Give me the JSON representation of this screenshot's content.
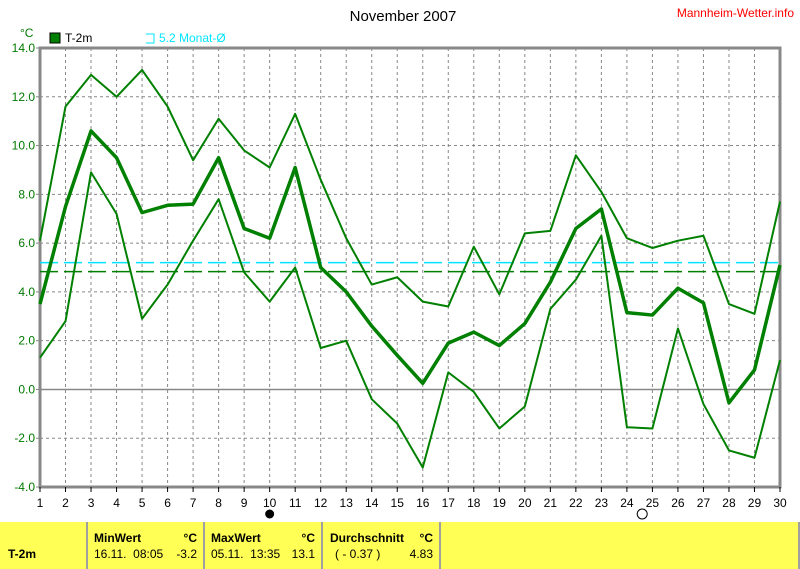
{
  "brand": "Mannheim-Wetter.info",
  "colors": {
    "series": "#008000",
    "average_line": "#008000",
    "monthly_avg_line": "#00e5ff",
    "brand": "#ff0000",
    "table_bg": "#ffff55"
  },
  "moon_phases": [
    {
      "day": 10,
      "icon": "filled-moon-icon"
    },
    {
      "day": 24.6,
      "icon": "open-moon-icon"
    }
  ],
  "chart_data": {
    "type": "line",
    "title": "November 2007",
    "ylabel": "°C",
    "ylim": [
      -4,
      14
    ],
    "xlim": [
      1,
      30
    ],
    "yticks": [
      "14.0",
      "12.0",
      "10.0",
      "8.0",
      "6.0",
      "4.0",
      "2.0",
      "0.0",
      "-2.0",
      "-4.0"
    ],
    "x": [
      1,
      2,
      3,
      4,
      5,
      6,
      7,
      8,
      9,
      10,
      11,
      12,
      13,
      14,
      15,
      16,
      17,
      18,
      19,
      20,
      21,
      22,
      23,
      24,
      25,
      26,
      27,
      28,
      29,
      30
    ],
    "grid": true,
    "legend": [
      {
        "label": "T-2m",
        "icon": "filled-square-icon"
      },
      {
        "label": "5.2 Monat-Ø",
        "icon": "open-square-icon"
      }
    ],
    "series": [
      {
        "name": "T-2m",
        "role": "mean",
        "values": [
          3.5,
          7.5,
          10.6,
          9.5,
          7.25,
          7.55,
          7.6,
          9.5,
          6.6,
          6.2,
          9.1,
          5.0,
          4.0,
          2.6,
          1.4,
          0.25,
          1.9,
          2.35,
          1.8,
          2.7,
          4.4,
          6.6,
          7.4,
          3.15,
          3.05,
          4.15,
          3.55,
          -0.55,
          0.8,
          5.1
        ]
      },
      {
        "role": "max",
        "values": [
          6.1,
          11.6,
          12.9,
          12.0,
          13.1,
          11.6,
          9.4,
          11.1,
          9.8,
          9.1,
          11.3,
          8.6,
          6.2,
          4.3,
          4.6,
          3.6,
          3.4,
          5.85,
          3.9,
          6.4,
          6.5,
          9.6,
          8.1,
          6.2,
          5.8,
          6.1,
          6.3,
          3.5,
          3.1,
          7.7
        ]
      },
      {
        "role": "min",
        "values": [
          1.3,
          2.8,
          8.9,
          7.2,
          2.9,
          4.3,
          6.1,
          7.8,
          4.8,
          3.6,
          5.0,
          1.7,
          2.0,
          -0.4,
          -1.4,
          -3.2,
          0.7,
          -0.1,
          -1.6,
          -0.7,
          3.3,
          4.5,
          6.3,
          -1.55,
          -1.6,
          2.5,
          -0.6,
          -2.5,
          -2.8,
          1.2
        ]
      }
    ],
    "reference_lines": [
      {
        "value": 5.2,
        "label": "5.2 Monat-Ø"
      },
      {
        "value": 4.83
      }
    ]
  },
  "table": {
    "row_label": "T-2m",
    "min": {
      "header": "MinWert",
      "unit": "°C",
      "datetime": "16.11.  08:05",
      "value": "-3.2"
    },
    "max": {
      "header": "MaxWert",
      "unit": "°C",
      "datetime": "05.11.  13:35",
      "value": "13.1"
    },
    "avg": {
      "header": "Durchschnitt",
      "unit": "°C",
      "deviation": "( - 0.37 )",
      "value": "4.83"
    }
  }
}
